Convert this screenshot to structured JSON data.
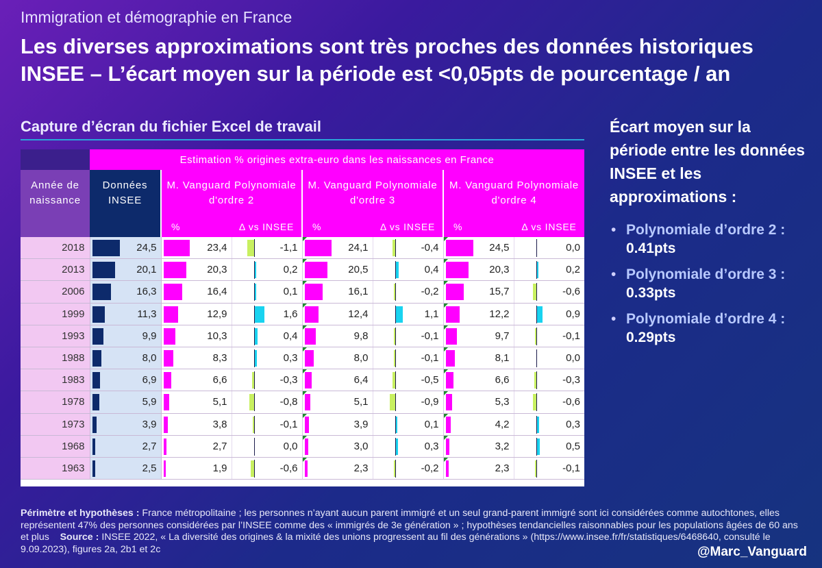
{
  "header": {
    "supertitle": "Immigration et démographie en France",
    "title": "Les diverses approximations sont très proches des données historiques INSEE – L’écart moyen sur la période est <0,05pts de pourcentage / an",
    "subtitle": "Capture d’écran du fichier Excel de travail"
  },
  "table": {
    "band_label": "Estimation % origines extra-euro dans les naissances en France",
    "col_year": "Année de naissance",
    "col_insee": "Données INSEE",
    "model_1": "M. Vanguard Polynomiale d'ordre 2",
    "model_2": "M. Vanguard Polynomiale d'ordre 3",
    "model_3": "M. Vanguard Polynomiale d'ordre 4",
    "sub_pct": "%",
    "sub_delta": "Δ vs INSEE",
    "rows": [
      {
        "year": "2018",
        "insee": "24,5",
        "p2": "23,4",
        "d2": "-1,1",
        "p3": "24,1",
        "d3": "-0,4",
        "p4": "24,5",
        "d4": "0,0"
      },
      {
        "year": "2013",
        "insee": "20,1",
        "p2": "20,3",
        "d2": "0,2",
        "p3": "20,5",
        "d3": "0,4",
        "p4": "20,3",
        "d4": "0,2"
      },
      {
        "year": "2006",
        "insee": "16,3",
        "p2": "16,4",
        "d2": "0,1",
        "p3": "16,1",
        "d3": "-0,2",
        "p4": "15,7",
        "d4": "-0,6"
      },
      {
        "year": "1999",
        "insee": "11,3",
        "p2": "12,9",
        "d2": "1,6",
        "p3": "12,4",
        "d3": "1,1",
        "p4": "12,2",
        "d4": "0,9"
      },
      {
        "year": "1993",
        "insee": "9,9",
        "p2": "10,3",
        "d2": "0,4",
        "p3": "9,8",
        "d3": "-0,1",
        "p4": "9,7",
        "d4": "-0,1"
      },
      {
        "year": "1988",
        "insee": "8,0",
        "p2": "8,3",
        "d2": "0,3",
        "p3": "8,0",
        "d3": "-0,1",
        "p4": "8,1",
        "d4": "0,0"
      },
      {
        "year": "1983",
        "insee": "6,9",
        "p2": "6,6",
        "d2": "-0,3",
        "p3": "6,4",
        "d3": "-0,5",
        "p4": "6,6",
        "d4": "-0,3"
      },
      {
        "year": "1978",
        "insee": "5,9",
        "p2": "5,1",
        "d2": "-0,8",
        "p3": "5,1",
        "d3": "-0,9",
        "p4": "5,3",
        "d4": "-0,6"
      },
      {
        "year": "1973",
        "insee": "3,9",
        "p2": "3,8",
        "d2": "-0,1",
        "p3": "3,9",
        "d3": "0,1",
        "p4": "4,2",
        "d4": "0,3"
      },
      {
        "year": "1968",
        "insee": "2,7",
        "p2": "2,7",
        "d2": "0,0",
        "p3": "3,0",
        "d3": "0,3",
        "p4": "3,2",
        "d4": "0,5"
      },
      {
        "year": "1963",
        "insee": "2,5",
        "p2": "1,9",
        "d2": "-0,6",
        "p3": "2,3",
        "d3": "-0,2",
        "p4": "2,3",
        "d4": "-0,1"
      }
    ]
  },
  "chart_data": {
    "type": "table",
    "title": "Estimation % origines extra-euro dans les naissances en France",
    "categories": [
      "2018",
      "2013",
      "2006",
      "1999",
      "1993",
      "1988",
      "1983",
      "1978",
      "1973",
      "1968",
      "1963"
    ],
    "series": [
      {
        "name": "Données INSEE",
        "values": [
          24.5,
          20.1,
          16.3,
          11.3,
          9.9,
          8.0,
          6.9,
          5.9,
          3.9,
          2.7,
          2.5
        ]
      },
      {
        "name": "M. Vanguard Polynomiale d'ordre 2 %",
        "values": [
          23.4,
          20.3,
          16.4,
          12.9,
          10.3,
          8.3,
          6.6,
          5.1,
          3.8,
          2.7,
          1.9
        ]
      },
      {
        "name": "M. Vanguard Polynomiale d'ordre 2 Δ vs INSEE",
        "values": [
          -1.1,
          0.2,
          0.1,
          1.6,
          0.4,
          0.3,
          -0.3,
          -0.8,
          -0.1,
          0.0,
          -0.6
        ]
      },
      {
        "name": "M. Vanguard Polynomiale d'ordre 3 %",
        "values": [
          24.1,
          20.5,
          16.1,
          12.4,
          9.8,
          8.0,
          6.4,
          5.1,
          3.9,
          3.0,
          2.3
        ]
      },
      {
        "name": "M. Vanguard Polynomiale d'ordre 3 Δ vs INSEE",
        "values": [
          -0.4,
          0.4,
          -0.2,
          1.1,
          -0.1,
          -0.1,
          -0.5,
          -0.9,
          0.1,
          0.3,
          -0.2
        ]
      },
      {
        "name": "M. Vanguard Polynomiale d'ordre 4 %",
        "values": [
          24.5,
          20.3,
          15.7,
          12.2,
          9.7,
          8.1,
          6.6,
          5.3,
          4.2,
          3.2,
          2.3
        ]
      },
      {
        "name": "M. Vanguard Polynomiale d'ordre 4 Δ vs INSEE",
        "values": [
          0.0,
          0.2,
          -0.6,
          0.9,
          -0.1,
          0.0,
          -0.3,
          -0.6,
          0.3,
          0.5,
          -0.1
        ]
      }
    ],
    "pct_max": 24.5,
    "delta_max": 1.6
  },
  "side": {
    "title": "Écart moyen sur la période entre les données INSEE et les approximations :",
    "items": [
      {
        "name": "Polynomiale d’ordre 2 :",
        "score": "0.41pts"
      },
      {
        "name": "Polynomiale d’ordre 3 :",
        "score": "0.33pts"
      },
      {
        "name": "Polynomiale d’ordre 4 :",
        "score": "0.29pts"
      }
    ]
  },
  "footnote": {
    "label1": "Périmètre et hypothèses :",
    "text1": "France métropolitaine ; les personnes n’ayant aucun parent immigré et un seul grand-parent immigré sont ici considérées comme autochtones, elles représentent 47% des personnes considérées par l’INSEE comme des « immigrés de 3e génération » ; hypothèses tendancielles raisonnables pour les populations âgées de 60 ans et plus",
    "label2": "Source :",
    "text2": "INSEE 2022, « La diversité des origines & la mixité des unions progressent au fil des générations » (https://www.insee.fr/fr/statistiques/6468640, consulté le 9.09.2023), figures 2a, 2b1 et 2c"
  },
  "handle": "@Marc_Vanguard",
  "colors": {
    "magenta": "#ff00ff",
    "navy": "#0d2a6b",
    "cyan": "#19d3f0",
    "lime": "#c8f060"
  }
}
